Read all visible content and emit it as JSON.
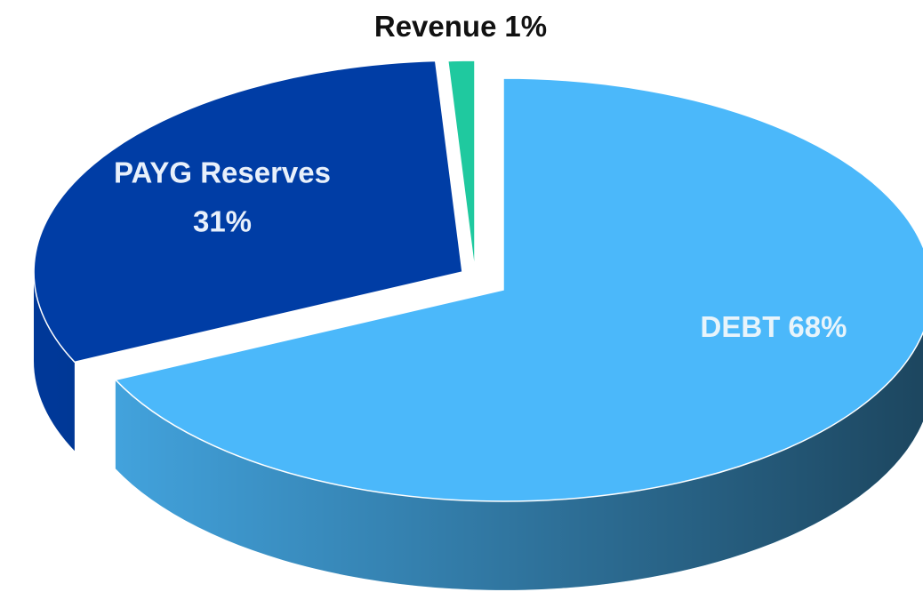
{
  "chart_data": {
    "type": "pie",
    "categories": [
      "DEBT",
      "PAYG Reserves",
      "Revenue"
    ],
    "values": [
      68,
      31,
      1
    ],
    "value_labels": [
      "68%",
      "31%",
      "1%"
    ],
    "colors": [
      "#4bb8fa",
      "#003da5",
      "#1fc99f"
    ],
    "label_colors": [
      "#e8f4fb",
      "#e8f0fb",
      "#111111"
    ]
  }
}
